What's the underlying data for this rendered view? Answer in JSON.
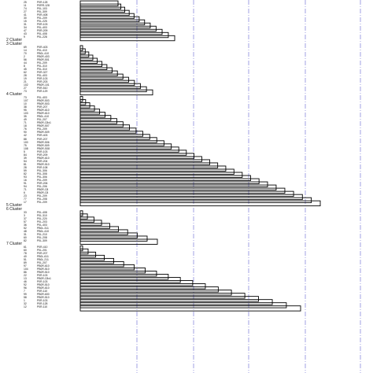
{
  "dendrogram": {
    "reference_line_color": "#7b7bd8",
    "bar_color": "#000000",
    "cluster_labels": [
      "2 Cluster",
      "3 Cluster",
      "4 Cluster",
      "5 Cluster",
      "6 Cluster",
      "7 Cluster"
    ],
    "groups": [
      {
        "cluster_index": -1,
        "rows": [
          [
            "25",
            "P0R-128"
          ],
          [
            "11",
            "P0RR-128"
          ],
          [
            "74",
            "P0L-103"
          ],
          [
            "27",
            "P0L-309"
          ],
          [
            "41",
            "P0R-408"
          ],
          [
            "30",
            "P0L-209"
          ],
          [
            "15",
            "P0L-225"
          ],
          [
            "31",
            "P0R-103"
          ],
          [
            "34",
            "P0L-403"
          ],
          [
            "47",
            "P0R-209"
          ],
          [
            "43",
            "P0L-408"
          ],
          [
            "9",
            "P0L-228"
          ]
        ]
      },
      {
        "cluster_index": 0,
        "rows": []
      },
      {
        "cluster_index": 1,
        "rows": [
          [
            "69",
            "P0R-403"
          ],
          [
            "14",
            "P0L-410"
          ],
          [
            "70",
            "PB0L-410"
          ],
          [
            "2",
            "PB0R-403"
          ],
          [
            "56",
            "PB0R-501"
          ],
          [
            "44",
            "P0L-209"
          ],
          [
            "8",
            "P0L-310"
          ],
          [
            "45",
            "P0L-310"
          ],
          [
            "62",
            "P0R-327"
          ],
          [
            "28",
            "P0L-403"
          ],
          [
            "19",
            "P0R-103"
          ],
          [
            "21",
            "P0R-203"
          ],
          [
            "102",
            "PB0R-101"
          ],
          [
            "27",
            "P0R-510"
          ],
          [
            "73",
            "P0R-129"
          ]
        ]
      },
      {
        "cluster_index": 2,
        "rows": [
          [
            "73",
            "P0L-403"
          ],
          [
            "107",
            "PB0R-503"
          ],
          [
            "10",
            "PB0R-503"
          ],
          [
            "38",
            "P0R-207"
          ],
          [
            "95",
            "PB0R-610"
          ],
          [
            "103",
            "PB0R-610"
          ],
          [
            "35",
            "PB0L-410"
          ],
          [
            "49",
            "P0L-207"
          ],
          [
            "71",
            "PB0R-C8x1"
          ],
          [
            "18",
            "PB0R-507"
          ],
          [
            "76",
            "P0L-209"
          ],
          [
            "90",
            "PB0R-509"
          ],
          [
            "42",
            "P0R-403"
          ],
          [
            "88",
            "P0R-207"
          ],
          [
            "100",
            "PB0R-506"
          ],
          [
            "75",
            "PB0R-509"
          ],
          [
            "108",
            "PB0R-S08"
          ],
          [
            "5",
            "P0R-103"
          ],
          [
            "84",
            "P0R-209"
          ],
          [
            "39",
            "PB0R-610"
          ],
          [
            "54",
            "P0R-204"
          ],
          [
            "81",
            "PB0R-510"
          ],
          [
            "28",
            "P0R-108"
          ],
          [
            "59",
            "P0L-306"
          ],
          [
            "82",
            "P0L-308"
          ],
          [
            "93",
            "P0L-306"
          ],
          [
            "16",
            "P0L-209"
          ],
          [
            "91",
            "P0R-206"
          ],
          [
            "94",
            "P0L-206"
          ],
          [
            "71",
            "PB0R-C8"
          ],
          [
            "6",
            "PB0R-C8"
          ],
          [
            "23",
            "P0L-209"
          ],
          [
            "77",
            "P0L-208"
          ],
          [
            "17",
            "P0L-209"
          ]
        ]
      },
      {
        "cluster_index": 3,
        "rows": []
      },
      {
        "cluster_index": 4,
        "rows": [
          [
            "33",
            "P0L-408"
          ],
          [
            "3",
            "P0L-310"
          ],
          [
            "37",
            "P0L-220"
          ],
          [
            "57",
            "P0L-203"
          ],
          [
            "36",
            "P0L-403"
          ],
          [
            "52",
            "PB0L-311"
          ],
          [
            "48",
            "PB0L-410"
          ],
          [
            "31",
            "P0L-210"
          ],
          [
            "60",
            "P0L-208"
          ],
          [
            "82",
            "P0L-309"
          ]
        ]
      },
      {
        "cluster_index": 5,
        "rows": [
          [
            "61",
            "P0R-410"
          ],
          [
            "60",
            "P0L-201"
          ],
          [
            "78",
            "P0R-207"
          ],
          [
            "40",
            "PB0L-611"
          ],
          [
            "51",
            "PB0L-211"
          ],
          [
            "89",
            "P0L-207"
          ],
          [
            "97",
            "PB0R-610"
          ],
          [
            "104",
            "PB0R-510"
          ],
          [
            "86",
            "PB0R-510"
          ],
          [
            "22",
            "P0R-103"
          ],
          [
            "13",
            "PB0R-C8x1"
          ],
          [
            "46",
            "P0R-103"
          ],
          [
            "92",
            "PB0R-510"
          ],
          [
            "96",
            "PB0R-610"
          ],
          [
            "7",
            "P0R-110"
          ],
          [
            "99",
            "PB0R-600"
          ],
          [
            "58",
            "PB0R-510"
          ],
          [
            "1",
            "P0R-103"
          ],
          [
            "32",
            "P0R-128"
          ],
          [
            "12",
            "P0R-110"
          ]
        ]
      }
    ]
  }
}
